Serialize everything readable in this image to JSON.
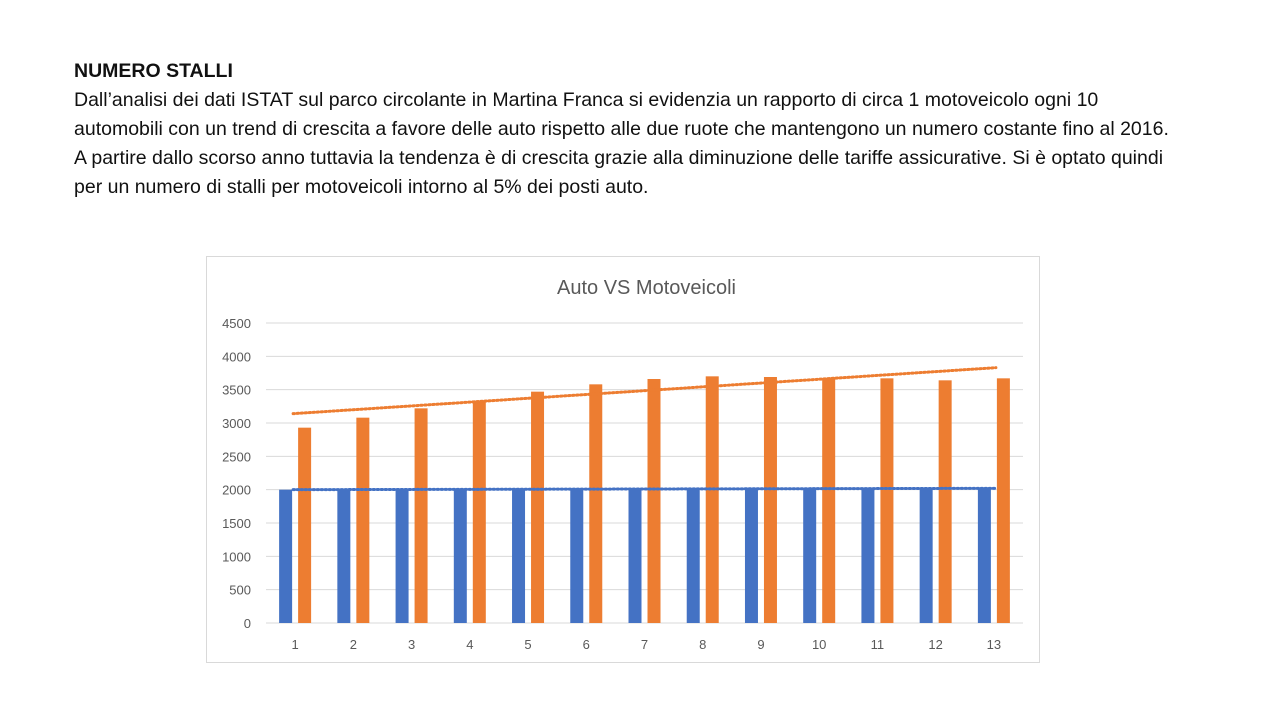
{
  "slide": {
    "heading": "NUMERO STALLI",
    "paragraphs": [
      "Dall’analisi dei dati ISTAT sul parco circolante in Martina Franca si evidenzia un rapporto di circa 1 motoveicolo ogni 10 automobili con un trend di crescita a favore delle auto rispetto alle due ruote che mantengono un numero costante fino al 2016.",
      "A partire dallo scorso anno tuttavia la tendenza è di crescita grazie alla diminuzione delle tariffe assicurative. Si è optato quindi per un numero di stalli per motoveicoli intorno al 5% dei posti auto."
    ]
  },
  "chart_data": {
    "type": "bar",
    "title": "Auto VS Motoveicoli",
    "xlabel": "",
    "ylabel": "",
    "categories": [
      "1",
      "2",
      "3",
      "4",
      "5",
      "6",
      "7",
      "8",
      "9",
      "10",
      "11",
      "12",
      "13"
    ],
    "ylim": [
      0,
      4500
    ],
    "yticks": [
      "0",
      "500",
      "1000",
      "1500",
      "2000",
      "2500",
      "3000",
      "3500",
      "4000",
      "4500"
    ],
    "grid": true,
    "legend": "none",
    "series": [
      {
        "values": [
          2000,
          2000,
          2000,
          2000,
          2010,
          2010,
          2010,
          2010,
          2010,
          2010,
          2010,
          2010,
          2010
        ],
        "color": "#4472c4",
        "trendline": {
          "style": "dotted",
          "start": 2000,
          "end": 2020
        }
      },
      {
        "values": [
          2930,
          3080,
          3220,
          3330,
          3470,
          3580,
          3660,
          3700,
          3690,
          3670,
          3670,
          3640,
          3670
        ],
        "color": "#ed7d31",
        "trendline": {
          "style": "dotted",
          "start": 3140,
          "end": 3830
        }
      }
    ]
  }
}
